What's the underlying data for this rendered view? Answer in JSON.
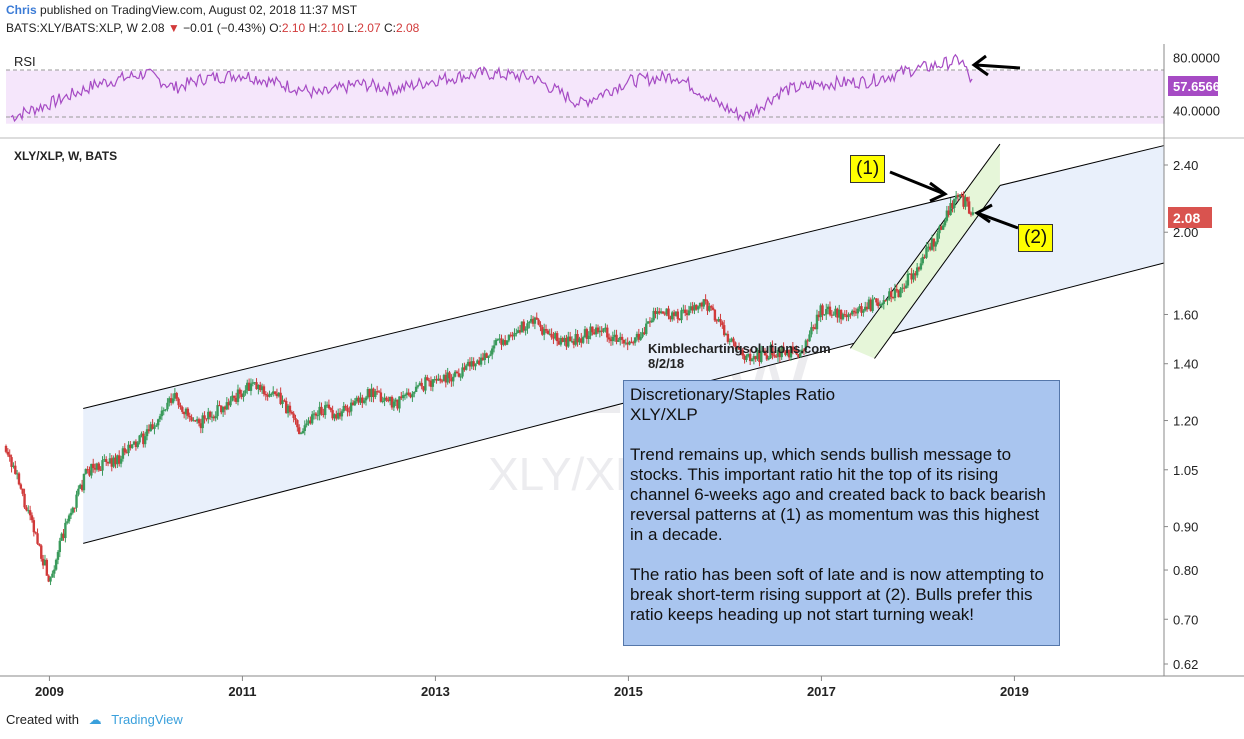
{
  "header": {
    "author": "Chris",
    "published": "published on TradingView.com, August 02, 2018 11:37 MST",
    "symbol": "BATS:XLY/BATS:XLP, W",
    "last": "2.08",
    "change": "−0.01 (−0.43%)",
    "o_label": "O:",
    "o_value": "2.10",
    "h_label": "H:",
    "h_value": "2.10",
    "l_label": "L:",
    "l_value": "2.07",
    "c_label": "C:",
    "c_value": "2.08"
  },
  "rsi_panel": {
    "label": "RSI",
    "current": "57.6566",
    "ticks": [
      "80.0000",
      "40.0000"
    ]
  },
  "main_panel": {
    "label": "XLY/XLP, W, BATS",
    "current": "2.08",
    "watermark": "XLY/XLP, W",
    "watermark2": "XLY/XLP"
  },
  "annotation": {
    "title": "Discretionary/Staples Ratio",
    "subtitle": "XLY/XLP",
    "para1": "Trend remains up, which sends bullish message to stocks. This important ratio hit the top of its rising channel 6-weeks ago and created back to back bearish reversal patterns at (1) as momentum was this highest in a decade.",
    "para2": "The ratio has been soft of late and is now attempting to break short-term rising support at (2). Bulls prefer this ratio keeps heading up not start turning weak!"
  },
  "callouts": {
    "c1": "(1)",
    "c2": "(2)"
  },
  "site_label": {
    "line1": "Kimblechartingsolutions.com",
    "line2": "8/2/18"
  },
  "footer": {
    "created": "Created with",
    "brand": "TradingView"
  },
  "colors": {
    "up": "#3a9a5b",
    "down": "#d03a3a",
    "rsi": "#a64bc4",
    "rsi_band": "#f5e6fb",
    "channel": "#e9f0fb",
    "short_channel": "#e6f6d9",
    "annot_bg": "#a9c5ef",
    "callout_bg": "#ffff00",
    "price_tag": "#d9534f"
  },
  "chart_data": [
    {
      "type": "line",
      "title": "RSI",
      "y_ticks": [
        80,
        40
      ],
      "ylim": [
        20,
        90
      ],
      "band": [
        30,
        70
      ],
      "current": 57.6566,
      "x": [
        2008.6,
        2009.0,
        2009.5,
        2010.0,
        2010.3,
        2010.6,
        2011.0,
        2011.5,
        2011.8,
        2012.2,
        2012.6,
        2013.0,
        2013.5,
        2014.0,
        2014.5,
        2015.0,
        2015.5,
        2015.9,
        2016.2,
        2016.6,
        2017.0,
        2017.5,
        2017.9,
        2018.2,
        2018.45,
        2018.58
      ],
      "values": [
        35,
        45,
        60,
        68,
        57,
        64,
        67,
        58,
        52,
        60,
        56,
        63,
        68,
        65,
        45,
        62,
        66,
        46,
        35,
        55,
        60,
        62,
        70,
        74,
        78,
        57.7
      ]
    },
    {
      "type": "line",
      "title": "XLY/XLP, W, BATS",
      "y_scale": "log",
      "y_ticks": [
        2.4,
        2.0,
        1.6,
        1.4,
        1.2,
        1.05,
        0.9,
        0.8,
        0.7,
        0.62
      ],
      "x_ticks": [
        "2009",
        "2011",
        "2013",
        "2015",
        "2017",
        "2019"
      ],
      "current": 2.08,
      "x": [
        2008.55,
        2008.75,
        2009.0,
        2009.2,
        2009.4,
        2009.7,
        2010.0,
        2010.3,
        2010.5,
        2010.8,
        2011.1,
        2011.4,
        2011.6,
        2011.8,
        2012.0,
        2012.3,
        2012.6,
        2012.9,
        2013.2,
        2013.5,
        2013.8,
        2014.0,
        2014.2,
        2014.4,
        2014.7,
        2015.0,
        2015.3,
        2015.5,
        2015.8,
        2016.0,
        2016.2,
        2016.5,
        2016.8,
        2017.0,
        2017.3,
        2017.6,
        2017.8,
        2018.0,
        2018.2,
        2018.4,
        2018.5,
        2018.58
      ],
      "values": [
        1.12,
        0.95,
        0.78,
        0.92,
        1.05,
        1.08,
        1.15,
        1.28,
        1.18,
        1.25,
        1.32,
        1.27,
        1.17,
        1.24,
        1.22,
        1.29,
        1.26,
        1.33,
        1.36,
        1.43,
        1.52,
        1.57,
        1.5,
        1.48,
        1.55,
        1.46,
        1.61,
        1.59,
        1.65,
        1.52,
        1.41,
        1.45,
        1.44,
        1.62,
        1.6,
        1.66,
        1.7,
        1.82,
        1.98,
        2.2,
        2.16,
        2.08
      ],
      "channel_upper": {
        "x": [
          2009.35,
          2020.55
        ],
        "values": [
          1.24,
          2.53
        ]
      },
      "channel_lower": {
        "x": [
          2009.35,
          2020.55
        ],
        "values": [
          0.86,
          1.84
        ]
      },
      "short_channel_upper": {
        "x": [
          2017.3,
          2018.85
        ],
        "values": [
          1.46,
          2.54
        ]
      },
      "short_channel_lower": {
        "x": [
          2017.55,
          2018.85
        ],
        "values": [
          1.42,
          2.27
        ]
      }
    }
  ]
}
